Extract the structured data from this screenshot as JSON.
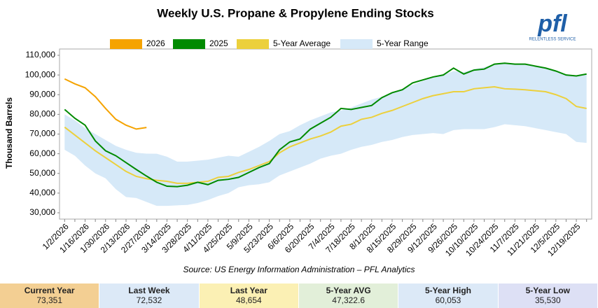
{
  "chart_data": {
    "type": "line",
    "title": "Weekly U.S. Propane & Propylene Ending Stocks",
    "y_label": "Thousand Barrels",
    "source": "Source: US Energy Information Administration – PFL Analytics",
    "logo": "pfl",
    "logo_tagline": "RELENTLESS SERVICE",
    "categories": [
      "1/2/2026",
      null,
      "1/16/2026",
      null,
      "1/30/2026",
      null,
      "2/13/2026",
      null,
      "2/27/2026",
      null,
      "3/14/2025",
      null,
      "3/28/2025",
      null,
      "4/11/2025",
      null,
      "4/25/2025",
      null,
      "5/9/2025",
      null,
      "5/23/2025",
      null,
      "6/6/2025",
      null,
      "6/20/2025",
      null,
      "7/4/2025",
      null,
      "7/18/2025",
      null,
      "8/1/2025",
      null,
      "8/15/2025",
      null,
      "8/29/2025",
      null,
      "9/12/2025",
      null,
      "9/26/2025",
      null,
      "10/10/2025",
      null,
      "10/24/2025",
      null,
      "11/7/2025",
      null,
      "11/21/2025",
      null,
      "12/5/2025",
      null,
      "12/19/2025",
      null
    ],
    "ylim": [
      30000,
      110000
    ],
    "yticks": [
      {
        "value": 30000,
        "label": "30,000"
      },
      {
        "value": 40000,
        "label": "40,000"
      },
      {
        "value": 50000,
        "label": "50,000"
      },
      {
        "value": 60000,
        "label": "60,000"
      },
      {
        "value": 70000,
        "label": "70,000"
      },
      {
        "value": 80000,
        "label": "80,000"
      },
      {
        "value": 90000,
        "label": "90,000"
      },
      {
        "value": 100000,
        "label": "100,000"
      },
      {
        "value": 110000,
        "label": "110,000"
      }
    ],
    "range": {
      "name": "5-Year Range",
      "color": "#d6e9f8",
      "high": [
        80000,
        77000,
        73000,
        70000,
        67000,
        64000,
        62000,
        60500,
        60053,
        60000,
        58500,
        56000,
        56000,
        56500,
        57000,
        58000,
        59000,
        58500,
        61000,
        63500,
        66500,
        70000,
        71500,
        74500,
        77000,
        79000,
        81000,
        82000,
        83500,
        85500,
        87500,
        89000,
        91000,
        93000,
        95000,
        97000,
        99000,
        100000,
        102000,
        101500,
        103000,
        104000,
        105500,
        106000,
        105500,
        105500,
        104500,
        103500,
        102000,
        100000,
        99500,
        100500
      ],
      "low": [
        62000,
        59000,
        54000,
        50000,
        47500,
        42000,
        38000,
        37500,
        35530,
        33500,
        33500,
        33800,
        34000,
        35000,
        36500,
        38500,
        40000,
        43000,
        44000,
        44500,
        45500,
        49000,
        51000,
        53000,
        55000,
        57500,
        59000,
        60000,
        62000,
        63500,
        64500,
        66000,
        67000,
        68500,
        69500,
        70000,
        70500,
        70000,
        72000,
        72500,
        72500,
        72500,
        73500,
        75000,
        74500,
        74000,
        73000,
        72000,
        71000,
        70000,
        66000,
        65500
      ]
    },
    "series": [
      {
        "name": "2026",
        "color": "#f5a300",
        "values": [
          98000,
          95500,
          93500,
          89000,
          83000,
          77500,
          74500,
          72532,
          73351,
          null,
          null,
          null,
          null,
          null,
          null,
          null,
          null,
          null,
          null,
          null,
          null,
          null,
          null,
          null,
          null,
          null,
          null,
          null,
          null,
          null,
          null,
          null,
          null,
          null,
          null,
          null,
          null,
          null,
          null,
          null,
          null,
          null,
          null,
          null,
          null,
          null,
          null,
          null,
          null,
          null,
          null,
          null
        ]
      },
      {
        "name": "2025",
        "color": "#008a00",
        "values": [
          82500,
          78000,
          74500,
          66500,
          61500,
          59000,
          55500,
          52000,
          48654,
          45500,
          43500,
          43300,
          44000,
          45500,
          44300,
          46500,
          47000,
          48000,
          50500,
          53000,
          55000,
          62000,
          66000,
          67500,
          72500,
          75500,
          78500,
          83000,
          82500,
          83500,
          84500,
          88500,
          91000,
          92500,
          96000,
          97500,
          99000,
          100000,
          103500,
          100500,
          102500,
          103000,
          105500,
          106000,
          105500,
          105500,
          104500,
          103500,
          102000,
          100000,
          99500,
          100500
        ]
      },
      {
        "name": "5-Year Average",
        "color": "#ecd03c",
        "values": [
          73500,
          69500,
          65500,
          61500,
          58000,
          54500,
          51000,
          48500,
          47322.6,
          46500,
          46000,
          45000,
          45000,
          45500,
          46000,
          48000,
          48500,
          50500,
          52000,
          54000,
          56000,
          60500,
          63500,
          65500,
          67500,
          69000,
          71000,
          74000,
          75000,
          77500,
          78500,
          80500,
          82000,
          84000,
          86000,
          88000,
          89500,
          90500,
          91500,
          91500,
          93000,
          93500,
          94000,
          93000,
          92800,
          92500,
          92000,
          91500,
          90000,
          88000,
          84000,
          83000
        ]
      }
    ]
  },
  "summary": [
    {
      "label": "Current Year",
      "value": "73,351",
      "color": "#f3cf93"
    },
    {
      "label": "Last Week",
      "value": "72,532",
      "color": "#dce9f7"
    },
    {
      "label": "Last Year",
      "value": "48,654",
      "color": "#fbf0b4"
    },
    {
      "label": "5-Year AVG",
      "value": "47,322.6",
      "color": "#e2efd9"
    },
    {
      "label": "5-Year High",
      "value": "60,053",
      "color": "#dce9f7"
    },
    {
      "label": "5-Year Low",
      "value": "35,530",
      "color": "#dde0f5"
    }
  ]
}
